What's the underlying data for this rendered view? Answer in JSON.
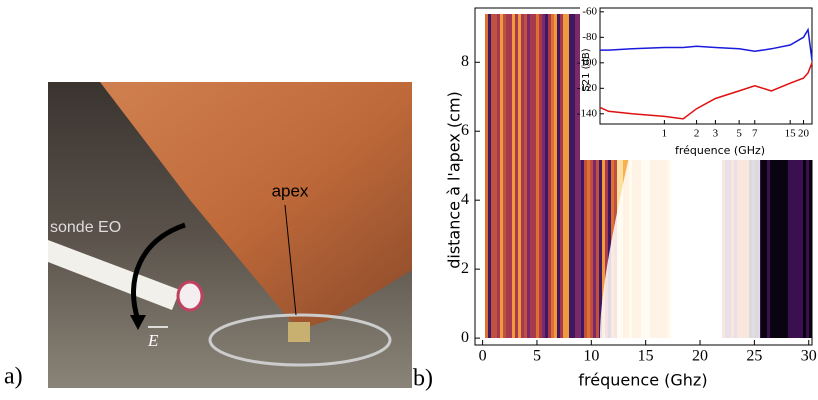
{
  "photo": {
    "panel_label": "a)",
    "apex_label": "apex",
    "probe_label": "sonde EO",
    "field_label": "E"
  },
  "panel_b_label": "b)",
  "chart_data": [
    {
      "type": "heatmap",
      "xlabel": "fréquence (Ghz)",
      "ylabel": "distance à l'apex (cm)",
      "xlim": [
        -0.7,
        30.3
      ],
      "ylim": [
        -0.2,
        9.4
      ],
      "xticks": [
        0,
        5,
        10,
        15,
        20,
        25,
        30
      ],
      "yticks": [
        0,
        2,
        4,
        6,
        8
      ]
    },
    {
      "type": "line",
      "xlabel": "fréquence (GHz)",
      "ylabel": "S21 (dB)",
      "xscale": "log",
      "xlim": [
        0.25,
        24
      ],
      "ylim": [
        -148,
        -57
      ],
      "xticks": [
        1,
        2,
        3,
        5,
        7,
        15,
        20
      ],
      "yticks": [
        -60,
        -80,
        -100,
        -120,
        -140
      ],
      "x": [
        0.25,
        0.3,
        0.5,
        1,
        1.5,
        2,
        3,
        5,
        7,
        10,
        15,
        20,
        22,
        24
      ],
      "series": [
        {
          "color": "#1a1adc",
          "values": [
            -90,
            -90,
            -89,
            -88,
            -88,
            -87,
            -88,
            -89,
            -91,
            -89,
            -86,
            -80,
            -74,
            -98
          ]
        },
        {
          "color": "#e01010",
          "values": [
            -135,
            -138,
            -140,
            -142,
            -144,
            -136,
            -128,
            -122,
            -118,
            -122,
            -116,
            -112,
            -108,
            -100
          ]
        }
      ]
    }
  ]
}
